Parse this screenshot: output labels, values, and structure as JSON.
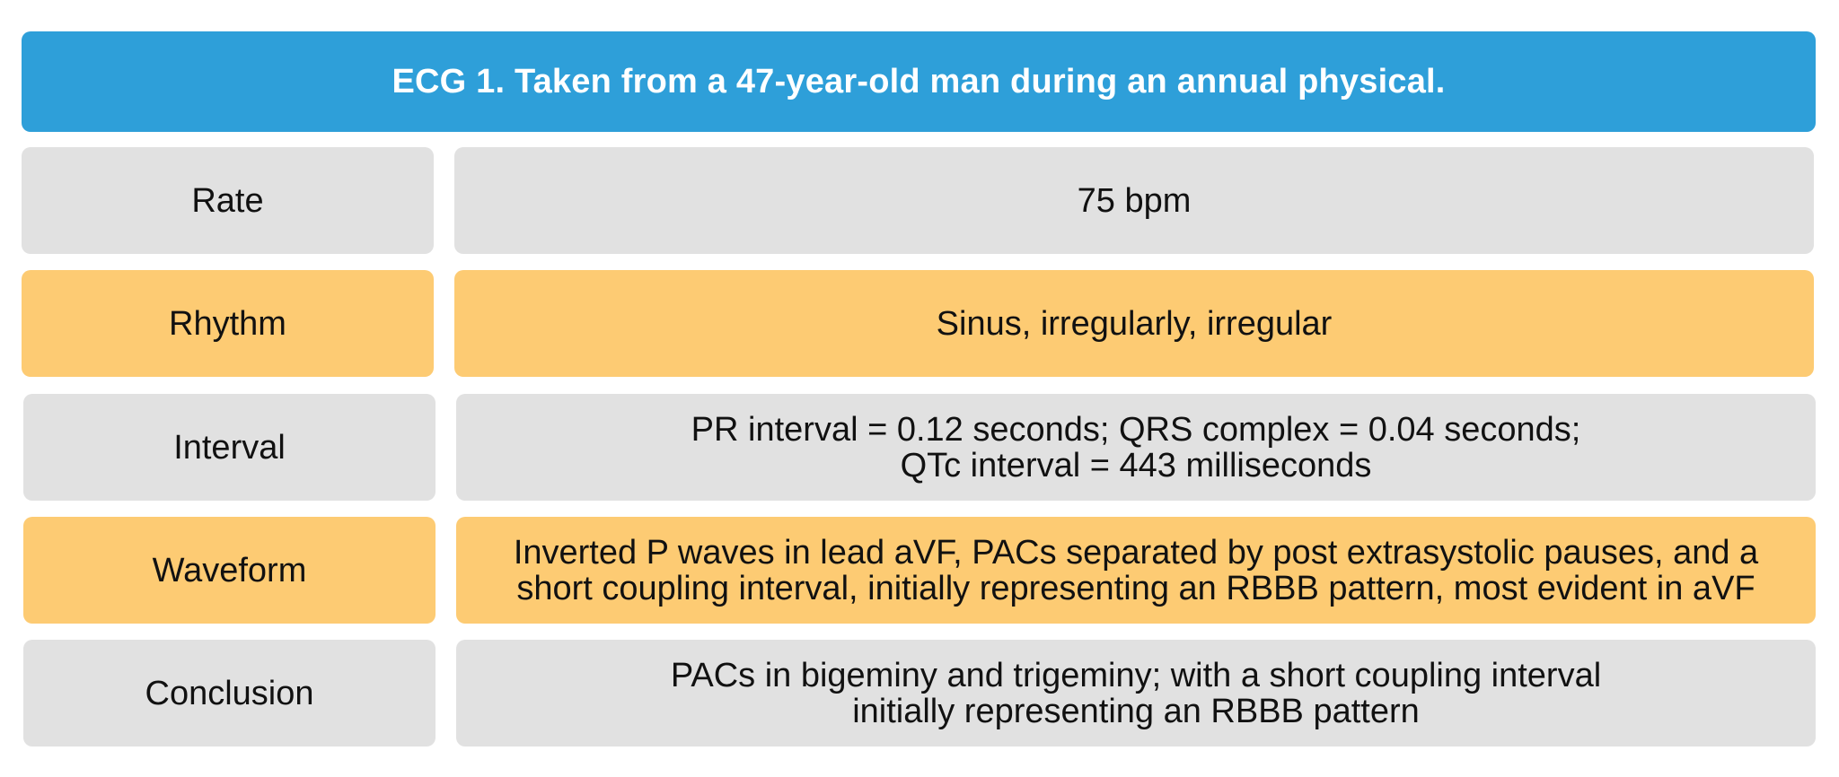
{
  "title": "ECG 1. Taken from a 47-year-old man during an annual physical.",
  "colors": {
    "title_bg": "#2e9fd9",
    "gray_row": "#e1e1e1",
    "orange_row": "#fdcb73"
  },
  "rows": [
    {
      "label": "Rate",
      "value_lines": [
        "75 bpm"
      ],
      "color": "gray"
    },
    {
      "label": "Rhythm",
      "value_lines": [
        "Sinus, irregularly, irregular"
      ],
      "color": "orange"
    },
    {
      "label": "Interval",
      "value_lines": [
        "PR interval = 0.12 seconds; QRS complex = 0.04 seconds;",
        "QTc interval = 443 milliseconds"
      ],
      "color": "gray"
    },
    {
      "label": "Waveform",
      "value_lines": [
        "Inverted P waves in lead aVF, PACs separated by post extrasystolic pauses, and a",
        "short coupling interval, initially representing an RBBB pattern, most evident in aVF"
      ],
      "color": "orange"
    },
    {
      "label": "Conclusion",
      "value_lines": [
        "PACs in bigeminy and trigeminy; with a short coupling interval",
        "initially representing an RBBB pattern"
      ],
      "color": "gray"
    }
  ]
}
